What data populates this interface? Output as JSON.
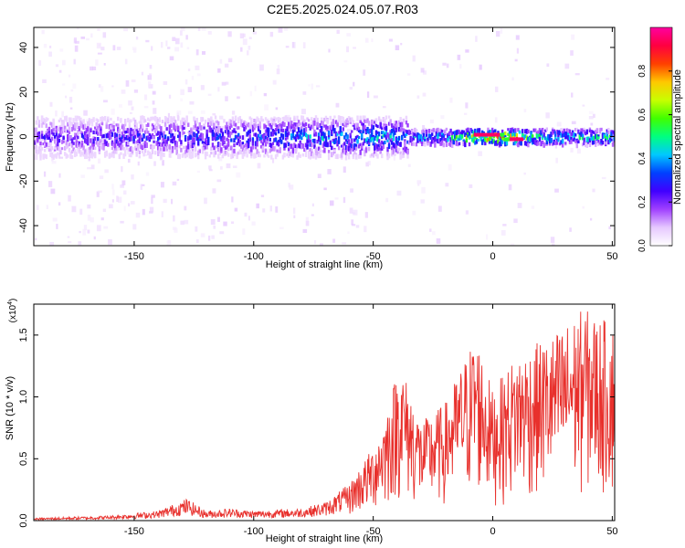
{
  "title": "C2E5.2025.024.05.07.R03",
  "chart_data": [
    {
      "type": "heatmap",
      "title": "C2E5.2025.024.05.07.R03",
      "xlabel": "Height of straight line (km)",
      "ylabel": "Frequency (Hz)",
      "xlim": [
        -192,
        51
      ],
      "ylim": [
        -49,
        49
      ],
      "x_ticks": [
        -150,
        -100,
        -50,
        0,
        50
      ],
      "y_ticks": [
        -40,
        -20,
        0,
        20,
        40
      ],
      "colorbar": {
        "label": "Normalized spectral amplitude",
        "range": [
          0,
          1
        ],
        "ticks": [
          0.0,
          0.2,
          0.4,
          0.6,
          0.8
        ],
        "colors": [
          "#ffffff",
          "#e6c8ff",
          "#a040ff",
          "#4000ff",
          "#0040ff",
          "#00c8ff",
          "#00ff80",
          "#40ff00",
          "#c8ff00",
          "#ffc800",
          "#ff4000",
          "#ff0040",
          "#ff00a0"
        ]
      },
      "ridge_amplitude": [
        {
          "x": -190,
          "amp": 0.22
        },
        {
          "x": -160,
          "amp": 0.25
        },
        {
          "x": -130,
          "amp": 0.28
        },
        {
          "x": -100,
          "amp": 0.32
        },
        {
          "x": -70,
          "amp": 0.38
        },
        {
          "x": -50,
          "amp": 0.42
        },
        {
          "x": -36,
          "amp": 0.35
        },
        {
          "x": -20,
          "amp": 0.45
        },
        {
          "x": -5,
          "amp": 0.8
        },
        {
          "x": 5,
          "amp": 0.9
        },
        {
          "x": 15,
          "amp": 0.5
        },
        {
          "x": 50,
          "amp": 0.45
        }
      ]
    },
    {
      "type": "line",
      "xlabel": "Height of straight line (km)",
      "ylabel": "SNR (10 * v/v)",
      "y_multiplier_label": "(x10",
      "y_multiplier_exp": "4",
      "y_multiplier_close": ")",
      "xlim": [
        -192,
        51
      ],
      "ylim": [
        0,
        1.75
      ],
      "x_ticks": [
        -150,
        -100,
        -50,
        0,
        50
      ],
      "y_ticks": [
        0.0,
        0.5,
        1.0,
        1.5
      ],
      "series_color": "#e8302c",
      "envelope": [
        {
          "x": -192,
          "y": 0.02
        },
        {
          "x": -160,
          "y": 0.04
        },
        {
          "x": -140,
          "y": 0.08
        },
        {
          "x": -128,
          "y": 0.18
        },
        {
          "x": -120,
          "y": 0.08
        },
        {
          "x": -110,
          "y": 0.1
        },
        {
          "x": -100,
          "y": 0.08
        },
        {
          "x": -80,
          "y": 0.1
        },
        {
          "x": -70,
          "y": 0.15
        },
        {
          "x": -60,
          "y": 0.3
        },
        {
          "x": -50,
          "y": 0.6
        },
        {
          "x": -45,
          "y": 0.85
        },
        {
          "x": -39,
          "y": 1.3
        },
        {
          "x": -30,
          "y": 0.8
        },
        {
          "x": -20,
          "y": 0.95
        },
        {
          "x": -7,
          "y": 1.52
        },
        {
          "x": 0,
          "y": 1.05
        },
        {
          "x": 10,
          "y": 1.35
        },
        {
          "x": 25,
          "y": 1.5
        },
        {
          "x": 38,
          "y": 1.72
        },
        {
          "x": 51,
          "y": 1.58
        }
      ]
    }
  ]
}
